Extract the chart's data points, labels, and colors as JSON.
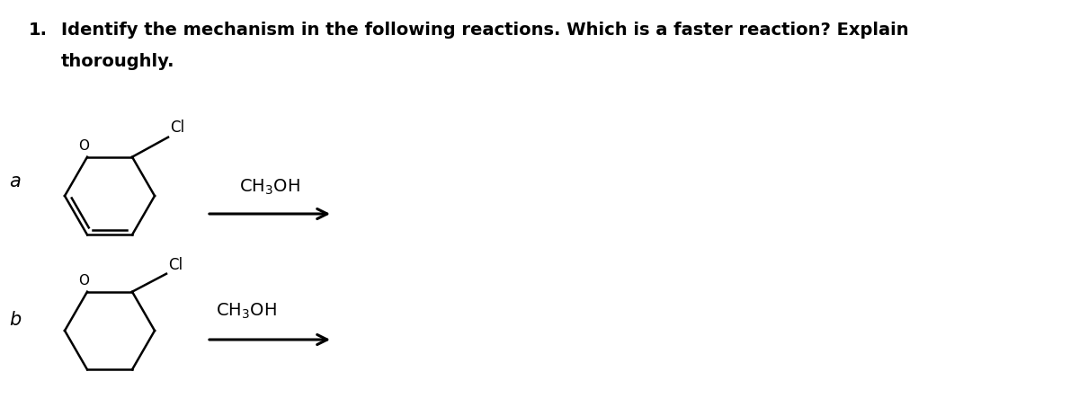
{
  "title_number": "1.",
  "title_text_line1": "Identify the mechanism in the following reactions. Which is a faster reaction? Explain",
  "title_text_line2": "thoroughly.",
  "title_fontsize": 14,
  "label_a": "a",
  "label_b": "b",
  "reagent_a": "CH$_3$OH",
  "reagent_b": "CH$_3$OH",
  "background_color": "#ffffff",
  "text_color": "#000000",
  "label_fontsize": 15,
  "reagent_fontsize": 14,
  "lw_structure": 1.8,
  "lw_arrow": 2.2,
  "fig_width": 12.0,
  "fig_height": 4.64,
  "dpi": 100
}
